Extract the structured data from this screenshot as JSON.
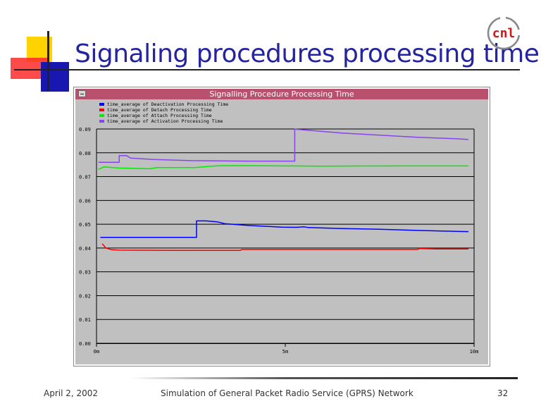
{
  "slide": {
    "title": "Signaling procedures processing time",
    "logo_text": "cnl",
    "footer": {
      "date": "April 2, 2002",
      "center": "Simulation of General Packet Radio Service (GPRS) Network",
      "page": "32"
    }
  },
  "window": {
    "title": "Signalling Procedure Processing Time"
  },
  "colors": {
    "title": "#2424a0",
    "titlebar": "#b8506e",
    "plot_bg": "#c0c0c0"
  },
  "chart_data": {
    "type": "line",
    "title": "Signalling Procedure Processing Time",
    "xlabel": "",
    "ylabel": "",
    "xlim": [
      0,
      10
    ],
    "ylim": [
      0,
      0.09
    ],
    "x_ticks": [
      {
        "value": 0,
        "label": "0m"
      },
      {
        "value": 5,
        "label": "5m"
      },
      {
        "value": 10,
        "label": "10m"
      }
    ],
    "y_ticks": [
      {
        "value": 0,
        "label": "0.00"
      },
      {
        "value": 0.01,
        "label": "0.01"
      },
      {
        "value": 0.02,
        "label": "0.02"
      },
      {
        "value": 0.03,
        "label": "0.03"
      },
      {
        "value": 0.04,
        "label": "0.04"
      },
      {
        "value": 0.05,
        "label": "0.05"
      },
      {
        "value": 0.06,
        "label": "0.06"
      },
      {
        "value": 0.07,
        "label": "0.07"
      },
      {
        "value": 0.08,
        "label": "0.08"
      },
      {
        "value": 0.09,
        "label": "0.09"
      }
    ],
    "grid": true,
    "legend_position": "top-left",
    "series": [
      {
        "name": "time_average of Deactivation Processing Time",
        "color": "#0000ff",
        "points": [
          [
            0.1,
            0.0445
          ],
          [
            2.65,
            0.0445
          ],
          [
            2.65,
            0.0514
          ],
          [
            2.9,
            0.0514
          ],
          [
            3.2,
            0.051
          ],
          [
            3.4,
            0.0502
          ],
          [
            4,
            0.0495
          ],
          [
            4.9,
            0.0488
          ],
          [
            5.3,
            0.0487
          ],
          [
            5.5,
            0.0489
          ],
          [
            5.6,
            0.0486
          ],
          [
            6.5,
            0.0482
          ],
          [
            7.5,
            0.0479
          ],
          [
            8.5,
            0.0474
          ],
          [
            9.5,
            0.047
          ],
          [
            9.85,
            0.0469
          ]
        ]
      },
      {
        "name": "time_average of Detach Processing Time",
        "color": "#ff0000",
        "points": [
          [
            0.15,
            0.0418
          ],
          [
            0.25,
            0.04
          ],
          [
            0.4,
            0.0393
          ],
          [
            0.6,
            0.0391
          ],
          [
            2,
            0.039
          ],
          [
            3.8,
            0.039
          ],
          [
            3.85,
            0.0394
          ],
          [
            5.5,
            0.0394
          ],
          [
            7,
            0.0394
          ],
          [
            8.5,
            0.0394
          ],
          [
            8.55,
            0.0398
          ],
          [
            9,
            0.0396
          ],
          [
            9.85,
            0.0396
          ]
        ]
      },
      {
        "name": "time_average of Attach Processing Time",
        "color": "#00ee00",
        "points": [
          [
            0.05,
            0.073
          ],
          [
            0.2,
            0.0741
          ],
          [
            0.6,
            0.0736
          ],
          [
            1.4,
            0.0733
          ],
          [
            1.6,
            0.0738
          ],
          [
            2.6,
            0.0738
          ],
          [
            3,
            0.0743
          ],
          [
            3.3,
            0.0746
          ],
          [
            4,
            0.0746
          ],
          [
            6,
            0.0744
          ],
          [
            8,
            0.0745
          ],
          [
            9.85,
            0.0745
          ]
        ]
      },
      {
        "name": "time_average of Activation Processing Time",
        "color": "#8844ee",
        "points": [
          [
            0.05,
            0.076
          ],
          [
            0.6,
            0.076
          ],
          [
            0.6,
            0.0788
          ],
          [
            0.8,
            0.0788
          ],
          [
            0.9,
            0.0778
          ],
          [
            1.5,
            0.0772
          ],
          [
            2.5,
            0.0767
          ],
          [
            4,
            0.0765
          ],
          [
            5.25,
            0.0765
          ],
          [
            5.25,
            0.0899
          ],
          [
            5.6,
            0.0895
          ],
          [
            6.5,
            0.0883
          ],
          [
            7.5,
            0.0874
          ],
          [
            8.5,
            0.0865
          ],
          [
            9.5,
            0.0859
          ],
          [
            9.85,
            0.0856
          ]
        ]
      }
    ]
  }
}
